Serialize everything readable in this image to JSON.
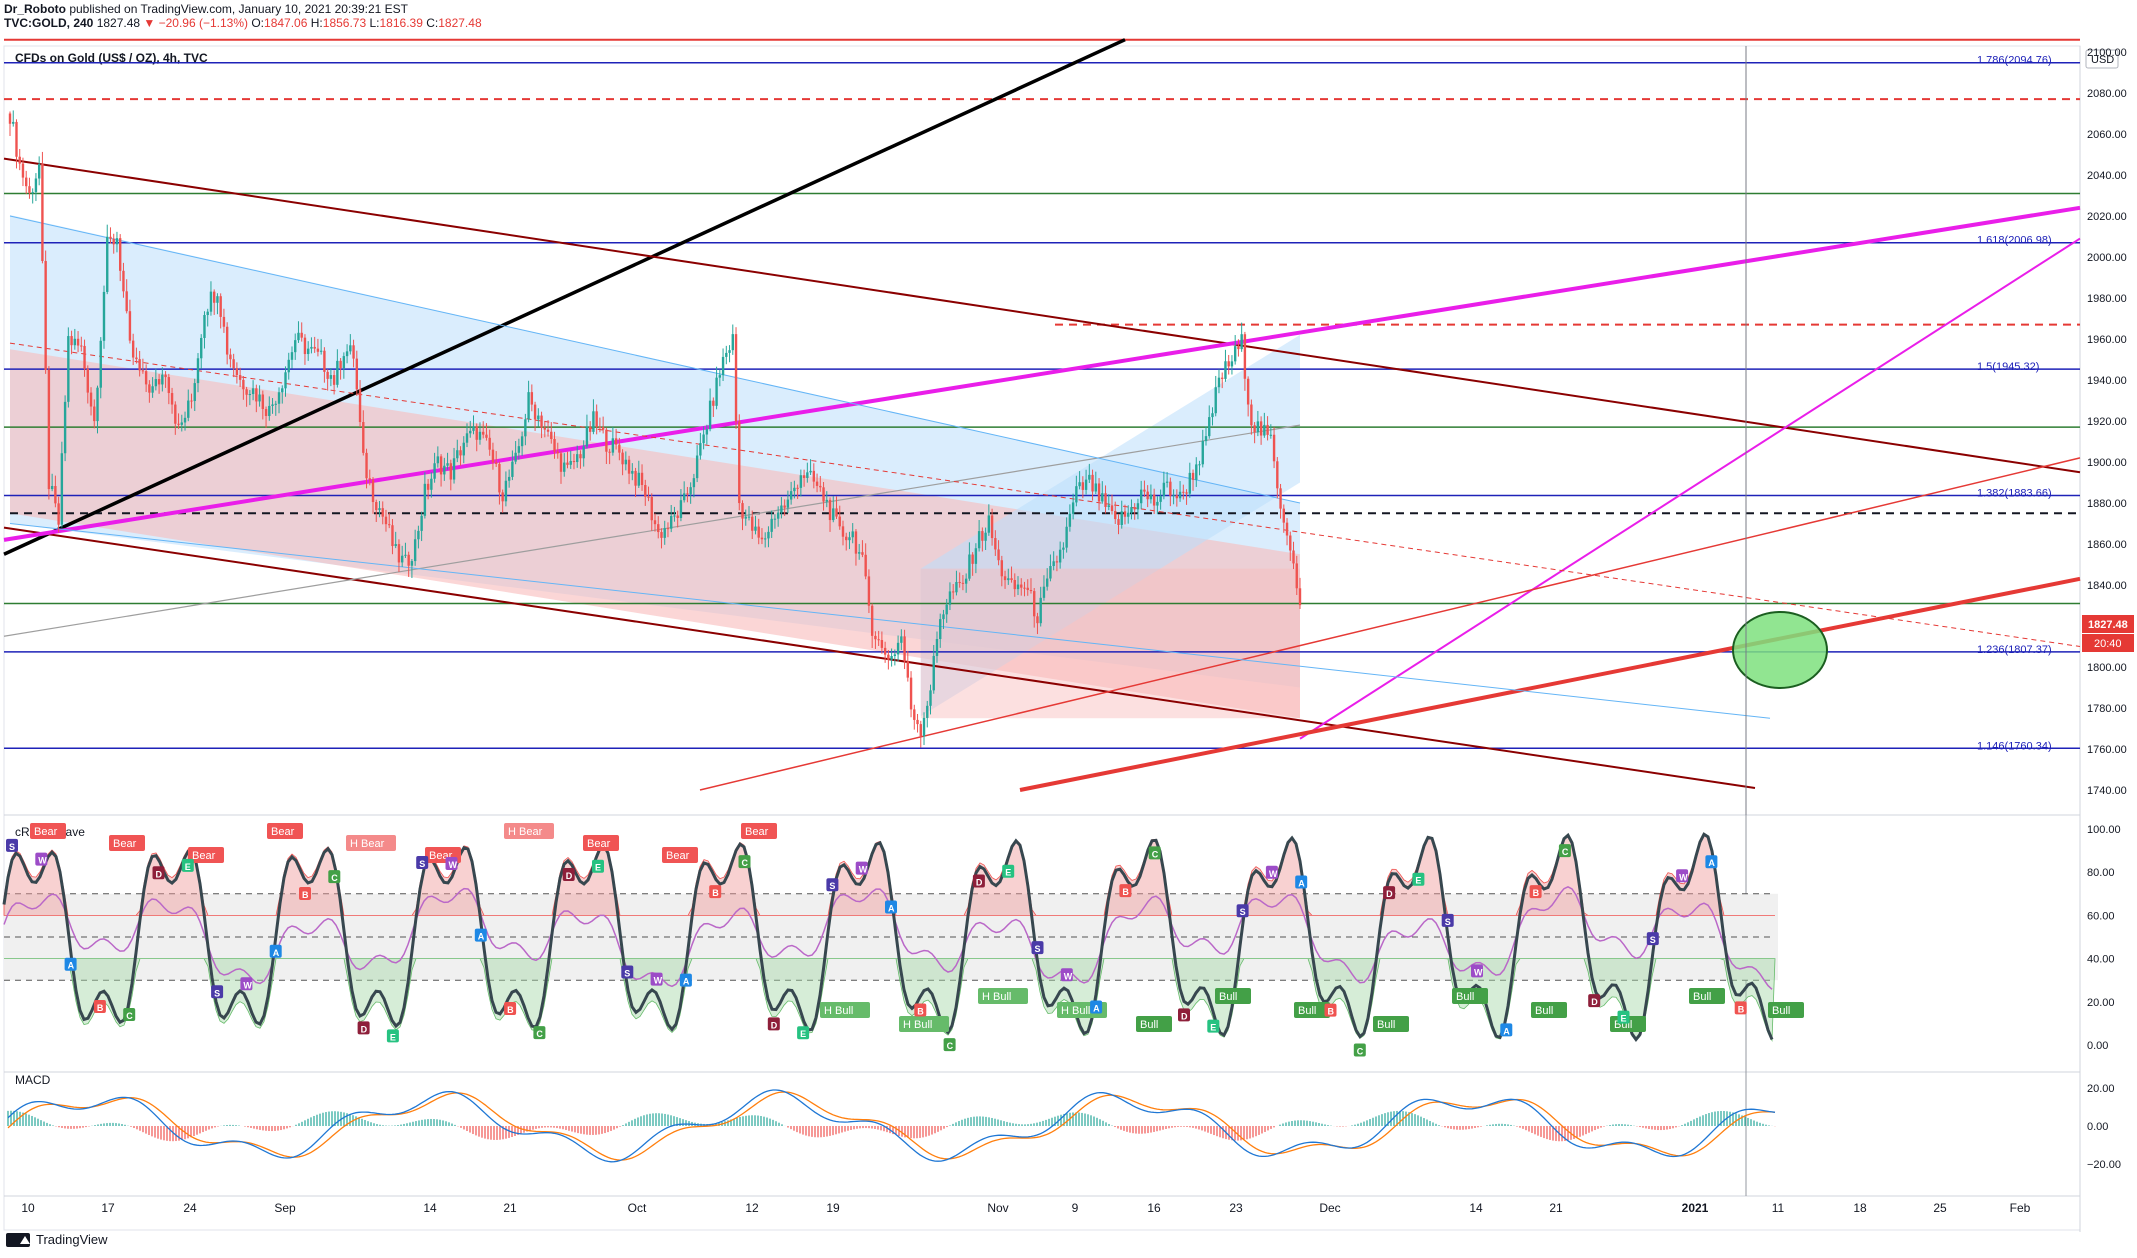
{
  "header": {
    "author": "Dr_Roboto",
    "published": " published on TradingView.com, January 10, 2021 20:39:21 EST",
    "symbol_line": "TVC:GOLD, 240",
    "ohlc_prefix": " 1827.48 ",
    "change": "▼ −20.96 (−1.13%)",
    "o_label": " O:",
    "o": "1847.06",
    "h_label": " H:",
    "h": "1856.73",
    "l_label": " L:",
    "l": "1816.39",
    "c_label": " C:",
    "c": "1827.48"
  },
  "main_title": "CFDs on Gold (US$ / OZ), 4h, TVC",
  "currency": "USD",
  "last_price": "1827.48",
  "countdown": "20:40",
  "rsi_title": "cRSI + Wave",
  "macd_title": "MACD",
  "footer": "TradingView",
  "colors": {
    "up": "#26a69a",
    "down": "#ef5350",
    "blue_level": "#1e22b8",
    "red_level": "#e53935",
    "green_level": "#2e7d32",
    "magenta": "#e91ee9"
  },
  "chart_data": {
    "type": "candlestick",
    "title": "CFDs on Gold (US$ / OZ), 4h, TVC",
    "price_axis": {
      "ticks": [
        "2100.00",
        "2080.00",
        "2060.00",
        "2040.00",
        "2020.00",
        "2000.00",
        "1980.00",
        "1960.00",
        "1940.00",
        "1920.00",
        "1900.00",
        "1880.00",
        "1860.00",
        "1840.00",
        "1820.00",
        "1800.00",
        "1780.00",
        "1760.00",
        "1740.00"
      ],
      "ylim": [
        1731,
        2112
      ]
    },
    "time_axis": {
      "ticks": [
        "10",
        "17",
        "24",
        "Sep",
        "14",
        "21",
        "Oct",
        "12",
        "19",
        "Nov",
        "9",
        "16",
        "23",
        "Dec",
        "14",
        "21",
        "2021",
        "11",
        "18",
        "25",
        "Feb"
      ]
    },
    "fib_levels": [
      {
        "label": "1.786(2094.76)",
        "price": 2094.76
      },
      {
        "label": "1.618(2006.98)",
        "price": 2006.98
      },
      {
        "label": "1.5(1945.32)",
        "price": 1945.32
      },
      {
        "label": "1.382(1883.66)",
        "price": 1883.66
      },
      {
        "label": "1.236(1807.37)",
        "price": 1807.37
      },
      {
        "label": "1.146(1760.34)",
        "price": 1760.34
      }
    ],
    "price_path": [
      [
        0,
        2070
      ],
      [
        3,
        2045
      ],
      [
        6,
        2030
      ],
      [
        9,
        2045
      ],
      [
        12,
        1890
      ],
      [
        15,
        1870
      ],
      [
        18,
        1960
      ],
      [
        22,
        1955
      ],
      [
        26,
        1920
      ],
      [
        30,
        2005
      ],
      [
        33,
        2010
      ],
      [
        37,
        1955
      ],
      [
        41,
        1940
      ],
      [
        44,
        1935
      ],
      [
        48,
        1945
      ],
      [
        52,
        1915
      ],
      [
        56,
        1930
      ],
      [
        60,
        1975
      ],
      [
        64,
        1985
      ],
      [
        67,
        1955
      ],
      [
        71,
        1940
      ],
      [
        75,
        1935
      ],
      [
        80,
        1925
      ],
      [
        84,
        1940
      ],
      [
        88,
        1960
      ],
      [
        92,
        1955
      ],
      [
        96,
        1950
      ],
      [
        100,
        1940
      ],
      [
        103,
        1955
      ],
      [
        106,
        1952
      ],
      [
        109,
        1900
      ],
      [
        112,
        1885
      ],
      [
        116,
        1870
      ],
      [
        119,
        1855
      ],
      [
        122,
        1850
      ],
      [
        125,
        1860
      ],
      [
        128,
        1885
      ],
      [
        132,
        1900
      ],
      [
        136,
        1895
      ],
      [
        140,
        1910
      ],
      [
        144,
        1915
      ],
      [
        148,
        1905
      ],
      [
        152,
        1885
      ],
      [
        156,
        1900
      ],
      [
        160,
        1930
      ],
      [
        164,
        1920
      ],
      [
        168,
        1905
      ],
      [
        172,
        1895
      ],
      [
        176,
        1905
      ],
      [
        180,
        1920
      ],
      [
        184,
        1910
      ],
      [
        188,
        1905
      ],
      [
        192,
        1895
      ],
      [
        196,
        1885
      ],
      [
        200,
        1865
      ],
      [
        204,
        1870
      ],
      [
        208,
        1880
      ],
      [
        212,
        1900
      ],
      [
        216,
        1925
      ],
      [
        220,
        1950
      ],
      [
        223,
        1960
      ],
      [
        225,
        1880
      ],
      [
        228,
        1870
      ],
      [
        232,
        1860
      ],
      [
        236,
        1875
      ],
      [
        240,
        1880
      ],
      [
        244,
        1895
      ],
      [
        248,
        1890
      ],
      [
        252,
        1880
      ],
      [
        256,
        1865
      ],
      [
        260,
        1865
      ],
      [
        263,
        1850
      ],
      [
        266,
        1820
      ],
      [
        269,
        1808
      ],
      [
        272,
        1805
      ],
      [
        275,
        1815
      ],
      [
        278,
        1780
      ],
      [
        281,
        1770
      ],
      [
        284,
        1790
      ],
      [
        287,
        1825
      ],
      [
        290,
        1835
      ],
      [
        294,
        1840
      ],
      [
        298,
        1860
      ],
      [
        302,
        1870
      ],
      [
        305,
        1850
      ],
      [
        309,
        1838
      ],
      [
        313,
        1840
      ],
      [
        317,
        1825
      ],
      [
        321,
        1845
      ],
      [
        325,
        1860
      ],
      [
        329,
        1885
      ],
      [
        333,
        1890
      ],
      [
        337,
        1880
      ],
      [
        341,
        1870
      ],
      [
        345,
        1875
      ],
      [
        349,
        1885
      ],
      [
        353,
        1880
      ],
      [
        357,
        1888
      ],
      [
        361,
        1882
      ],
      [
        365,
        1895
      ],
      [
        369,
        1910
      ],
      [
        373,
        1940
      ],
      [
        377,
        1950
      ],
      [
        380,
        1958
      ],
      [
        383,
        1920
      ],
      [
        386,
        1915
      ],
      [
        389,
        1910
      ],
      [
        392,
        1880
      ],
      [
        395,
        1860
      ],
      [
        398,
        1827
      ]
    ],
    "crsi_levels": {
      "ticks": [
        "100.00",
        "80.00",
        "60.00",
        "40.00",
        "20.00",
        "0.00"
      ],
      "bands": [
        70,
        50,
        30
      ]
    },
    "macd_levels": {
      "ticks": [
        "20.00",
        "0.00",
        "−20.00"
      ]
    },
    "markers": {
      "rsi_labels": [
        "Bear",
        "Bear",
        "Bear",
        "Bear",
        "H Bear",
        "Bear",
        "H Bear",
        "Bear",
        "Bear",
        "Bear",
        "H Bull",
        "H Bull",
        "H Bull",
        "H Bull",
        "Bull",
        "Bull",
        "Bull",
        "Bull",
        "Bull",
        "Bull",
        "Bull",
        "Bull",
        "Bull"
      ],
      "wave_letters": [
        "S",
        "W",
        "A",
        "B",
        "C",
        "D",
        "E"
      ]
    }
  }
}
